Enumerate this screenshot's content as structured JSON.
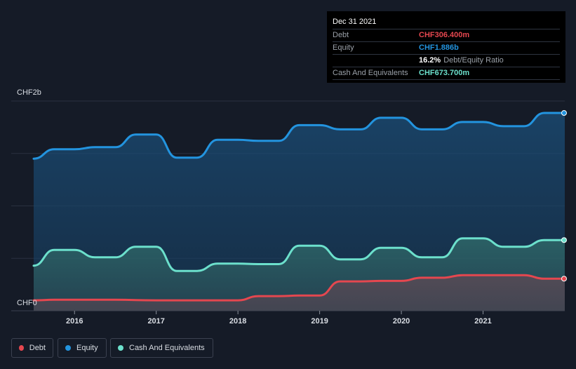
{
  "tooltip": {
    "date": "Dec 31 2021",
    "rows": [
      {
        "label": "Debt",
        "value": "CHF306.400m",
        "color": "#e5474f"
      },
      {
        "label": "Equity",
        "value": "CHF1.886b",
        "color": "#2394df"
      },
      {
        "label": "",
        "value": "16.2%",
        "suffix": "Debt/Equity Ratio",
        "color": "#ffffff"
      },
      {
        "label": "Cash And Equivalents",
        "value": "CHF673.700m",
        "color": "#6ce0cc"
      }
    ]
  },
  "legend": [
    {
      "label": "Debt",
      "color": "#e5474f"
    },
    {
      "label": "Equity",
      "color": "#2394df"
    },
    {
      "label": "Cash And Equivalents",
      "color": "#6ce0cc"
    }
  ],
  "chart_data": {
    "type": "area",
    "title": "",
    "xlabel": "",
    "ylabel": "",
    "y_axis_labels": [
      "CHF2b",
      "CHF0"
    ],
    "ylim": [
      0,
      2.0
    ],
    "xlim": [
      2015.5,
      2022.0
    ],
    "x_ticks": [
      2016,
      2017,
      2018,
      2019,
      2020,
      2021
    ],
    "x_tick_labels": [
      "2016",
      "2017",
      "2018",
      "2019",
      "2020",
      "2021"
    ],
    "series": [
      {
        "name": "Equity",
        "color": "#2394df",
        "points": [
          [
            2015.5,
            1.45
          ],
          [
            2015.75,
            1.54
          ],
          [
            2016.0,
            1.54
          ],
          [
            2016.25,
            1.56
          ],
          [
            2016.5,
            1.56
          ],
          [
            2016.75,
            1.68
          ],
          [
            2017.0,
            1.68
          ],
          [
            2017.25,
            1.46
          ],
          [
            2017.5,
            1.46
          ],
          [
            2017.75,
            1.63
          ],
          [
            2018.0,
            1.63
          ],
          [
            2018.25,
            1.62
          ],
          [
            2018.5,
            1.62
          ],
          [
            2018.75,
            1.77
          ],
          [
            2019.0,
            1.77
          ],
          [
            2019.25,
            1.73
          ],
          [
            2019.5,
            1.73
          ],
          [
            2019.75,
            1.84
          ],
          [
            2020.0,
            1.84
          ],
          [
            2020.25,
            1.73
          ],
          [
            2020.5,
            1.73
          ],
          [
            2020.75,
            1.8
          ],
          [
            2021.0,
            1.8
          ],
          [
            2021.25,
            1.76
          ],
          [
            2021.5,
            1.76
          ],
          [
            2021.75,
            1.886
          ],
          [
            2022.0,
            1.886
          ]
        ]
      },
      {
        "name": "Cash And Equivalents",
        "color": "#6ce0cc",
        "points": [
          [
            2015.5,
            0.43
          ],
          [
            2015.75,
            0.58
          ],
          [
            2016.0,
            0.58
          ],
          [
            2016.25,
            0.51
          ],
          [
            2016.5,
            0.51
          ],
          [
            2016.75,
            0.61
          ],
          [
            2017.0,
            0.61
          ],
          [
            2017.25,
            0.38
          ],
          [
            2017.5,
            0.38
          ],
          [
            2017.75,
            0.45
          ],
          [
            2018.0,
            0.45
          ],
          [
            2018.25,
            0.445
          ],
          [
            2018.5,
            0.445
          ],
          [
            2018.75,
            0.62
          ],
          [
            2019.0,
            0.62
          ],
          [
            2019.25,
            0.49
          ],
          [
            2019.5,
            0.49
          ],
          [
            2019.75,
            0.6
          ],
          [
            2020.0,
            0.6
          ],
          [
            2020.25,
            0.51
          ],
          [
            2020.5,
            0.51
          ],
          [
            2020.75,
            0.69
          ],
          [
            2021.0,
            0.69
          ],
          [
            2021.25,
            0.61
          ],
          [
            2021.5,
            0.61
          ],
          [
            2021.75,
            0.674
          ],
          [
            2022.0,
            0.674
          ]
        ]
      },
      {
        "name": "Debt",
        "color": "#e5474f",
        "points": [
          [
            2015.5,
            0.1
          ],
          [
            2015.75,
            0.105
          ],
          [
            2016.0,
            0.105
          ],
          [
            2016.5,
            0.105
          ],
          [
            2017.0,
            0.1
          ],
          [
            2017.5,
            0.1
          ],
          [
            2018.0,
            0.1
          ],
          [
            2018.25,
            0.14
          ],
          [
            2018.5,
            0.14
          ],
          [
            2018.75,
            0.145
          ],
          [
            2019.0,
            0.145
          ],
          [
            2019.25,
            0.28
          ],
          [
            2019.5,
            0.28
          ],
          [
            2019.75,
            0.285
          ],
          [
            2020.0,
            0.285
          ],
          [
            2020.25,
            0.315
          ],
          [
            2020.5,
            0.315
          ],
          [
            2020.75,
            0.34
          ],
          [
            2021.0,
            0.34
          ],
          [
            2021.5,
            0.34
          ],
          [
            2021.75,
            0.306
          ],
          [
            2022.0,
            0.306
          ]
        ]
      }
    ]
  }
}
